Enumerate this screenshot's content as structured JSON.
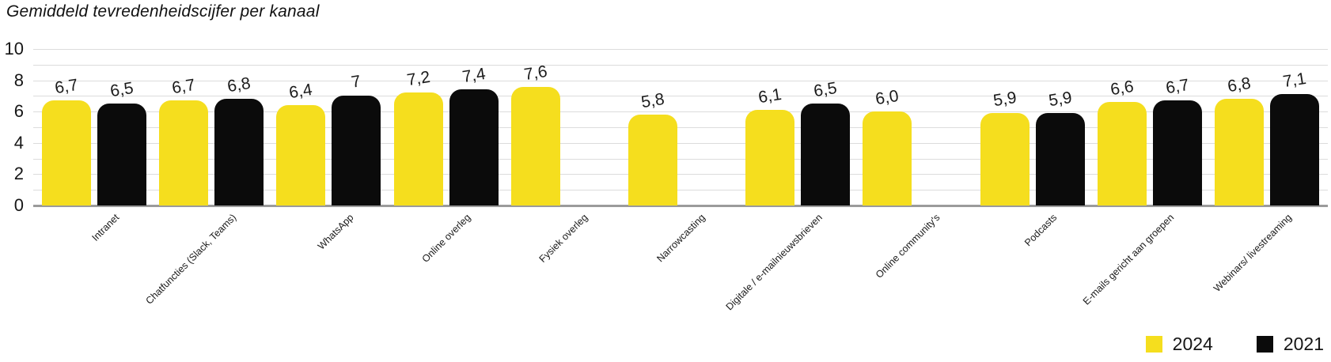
{
  "title": "Gemiddeld tevredenheidscijfer per kanaal",
  "legend": {
    "items": [
      {
        "label": "2024",
        "color": "#F5DE1E"
      },
      {
        "label": "2021",
        "color": "#0B0B0B"
      }
    ],
    "position": "bottom-right"
  },
  "y_axis": {
    "tick_labels": [
      "0",
      "2",
      "4",
      "6",
      "8",
      "10"
    ],
    "tick_values": [
      0,
      2,
      4,
      6,
      8,
      10
    ],
    "grid_values": [
      1,
      2,
      3,
      4,
      5,
      6,
      7,
      8,
      9,
      10
    ]
  },
  "colors": {
    "bar_2024": "#F5DE1E",
    "bar_2021": "#0B0B0B",
    "gridline": "#DCDCDC",
    "baseline": "#9B9B9B"
  },
  "chart_data": {
    "type": "bar",
    "title": "Gemiddeld tevredenheidscijfer per kanaal",
    "categories": [
      "Intranet",
      "Chatfuncties (Slack, Teams)",
      "WhatsApp",
      "Online overleg",
      "Fysiek overleg",
      "Narrowcasting",
      "Digitale / e-mailnieuwsbrieven",
      "Online community's",
      "Podcasts",
      "E-mails gericht aan groepen",
      "Webinars/ livestreaming"
    ],
    "series": [
      {
        "name": "2024",
        "color": "#F5DE1E",
        "values": [
          6.7,
          6.7,
          6.4,
          7.2,
          7.6,
          5.8,
          6.1,
          6.0,
          5.9,
          6.6,
          6.8
        ],
        "display_labels": [
          "6,7",
          "6,7",
          "6,4",
          "7,2",
          "7,6",
          "5,8",
          "6,1",
          "6,0",
          "5,9",
          "6,6",
          "6,8"
        ]
      },
      {
        "name": "2021",
        "color": "#0B0B0B",
        "values": [
          6.5,
          6.8,
          7,
          7.4,
          null,
          null,
          6.5,
          null,
          5.9,
          6.7,
          7.1
        ],
        "display_labels": [
          "6,5",
          "6,8",
          "7",
          "7,4",
          null,
          null,
          "6,5",
          null,
          "5,9",
          "6,7",
          "7,1"
        ]
      }
    ],
    "ylim": [
      0,
      10
    ],
    "grid": "horizontal-every-unit",
    "legend_position": "bottom-right"
  }
}
